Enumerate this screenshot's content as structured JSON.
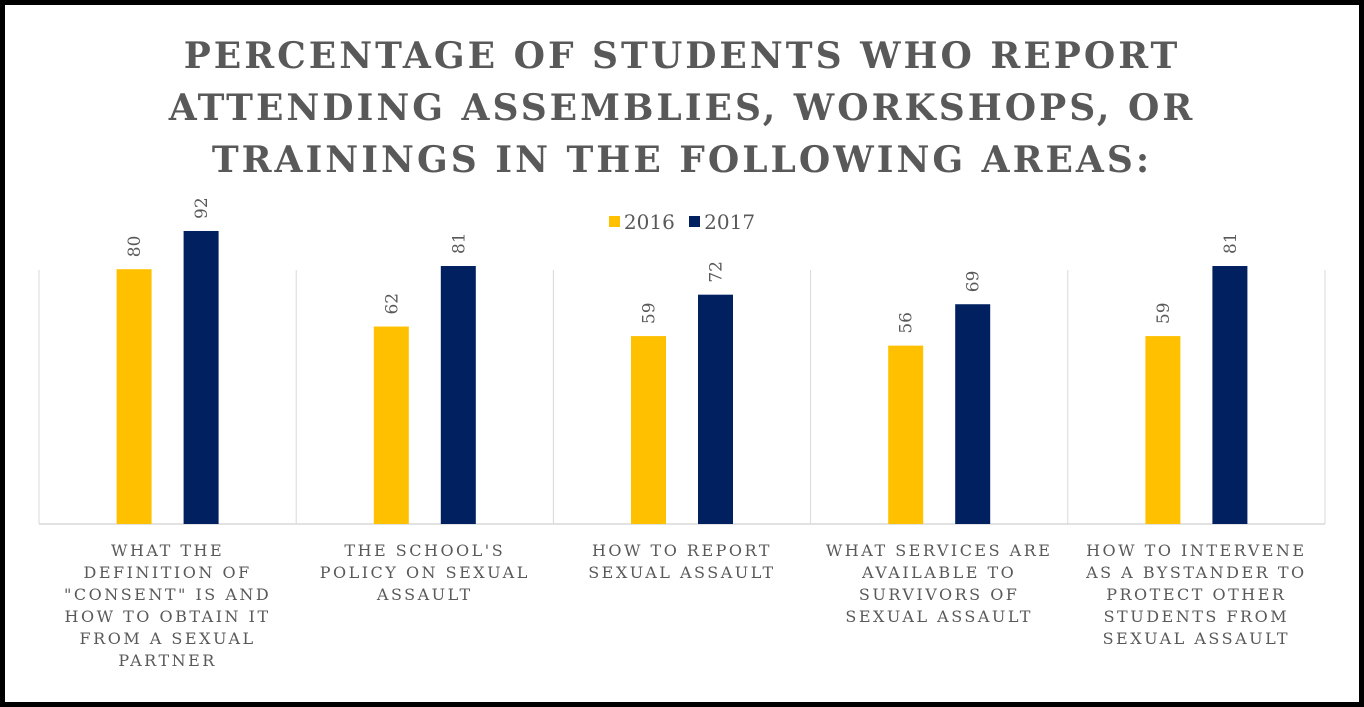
{
  "chart_data": {
    "type": "bar",
    "title": "PERCENTAGE OF STUDENTS WHO REPORT\nATTENDING ASSEMBLIES, WORKSHOPS, OR\nTRAININGS IN THE FOLLOWING AREAS:",
    "categories": [
      "WHAT THE\nDEFINITION OF\n\"CONSENT\" IS AND\nHOW TO OBTAIN IT\nFROM A SEXUAL\nPARTNER",
      "THE SCHOOL'S\nPOLICY ON SEXUAL\nASSAULT",
      "HOW TO REPORT\nSEXUAL ASSAULT",
      "WHAT SERVICES ARE\nAVAILABLE TO\nSURVIVORS OF\nSEXUAL ASSAULT",
      "HOW TO INTERVENE\nAS A BYSTANDER TO\nPROTECT OTHER\nSTUDENTS FROM\nSEXUAL ASSAULT"
    ],
    "series": [
      {
        "name": "2016",
        "color": "#FFC000",
        "values": [
          80,
          62,
          59,
          56,
          59
        ]
      },
      {
        "name": "2017",
        "color": "#002060",
        "values": [
          92,
          81,
          72,
          69,
          81
        ]
      }
    ],
    "ylim": [
      0,
      100
    ],
    "grid": false,
    "legend": "top-center",
    "data_labels": true
  }
}
